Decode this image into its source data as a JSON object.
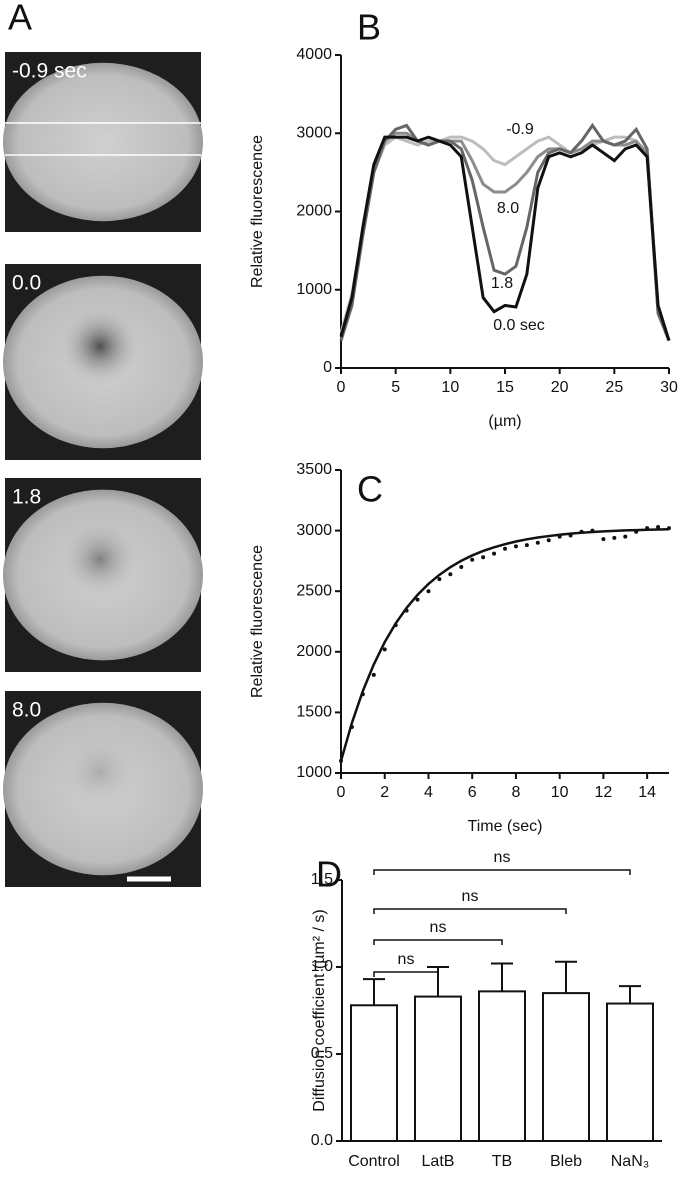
{
  "panel_a": {
    "label": "A",
    "frames": [
      "-0.9 sec",
      "0.0",
      "1.8",
      "8.0"
    ]
  },
  "chart_data": [
    {
      "type": "line",
      "panel": "B",
      "ylabel": "Relative fluorescence",
      "xlabel": "(µm)",
      "x": [
        0,
        1,
        2,
        3,
        4,
        5,
        6,
        7,
        8,
        9,
        10,
        11,
        12,
        13,
        14,
        15,
        16,
        17,
        18,
        19,
        20,
        21,
        22,
        23,
        24,
        25,
        26,
        27,
        28,
        29,
        30
      ],
      "series": [
        {
          "name": "-0.9",
          "color": "#bdbdbd",
          "values": [
            450,
            950,
            1750,
            2500,
            2850,
            2950,
            2900,
            2850,
            2900,
            2900,
            2950,
            2950,
            2900,
            2800,
            2650,
            2600,
            2700,
            2800,
            2900,
            2950,
            2850,
            2750,
            2800,
            2850,
            2900,
            2950,
            2950,
            2900,
            2700,
            700,
            350
          ]
        },
        {
          "name": "8.0",
          "color": "#8c8c8c",
          "values": [
            350,
            850,
            1700,
            2500,
            2900,
            3000,
            3000,
            2900,
            2850,
            2900,
            2900,
            2900,
            2650,
            2350,
            2250,
            2250,
            2350,
            2500,
            2700,
            2800,
            2800,
            2750,
            2800,
            2900,
            2900,
            2850,
            2850,
            2900,
            2750,
            700,
            350
          ]
        },
        {
          "name": "1.8",
          "color": "#666666",
          "values": [
            350,
            800,
            1700,
            2500,
            2900,
            3050,
            3100,
            2900,
            2850,
            2900,
            2900,
            2800,
            2400,
            1800,
            1250,
            1200,
            1300,
            1800,
            2500,
            2750,
            2800,
            2750,
            2900,
            3100,
            2900,
            2850,
            2900,
            3050,
            2800,
            700,
            350
          ]
        },
        {
          "name": "0.0 sec",
          "color": "#111111",
          "values": [
            400,
            900,
            1800,
            2600,
            2950,
            2950,
            2950,
            2900,
            2950,
            2900,
            2850,
            2700,
            1800,
            900,
            720,
            800,
            780,
            1200,
            2300,
            2700,
            2750,
            2700,
            2750,
            2850,
            2750,
            2650,
            2800,
            2850,
            2700,
            800,
            350
          ]
        }
      ],
      "xlim": [
        0,
        30
      ],
      "ylim": [
        0,
        4000
      ],
      "xticks": [
        0,
        5,
        10,
        15,
        20,
        25,
        30
      ],
      "yticks": [
        0,
        1000,
        2000,
        3000,
        4000
      ]
    },
    {
      "type": "scatter",
      "panel": "C",
      "ylabel": "Relative fluorescence",
      "xlabel": "Time (sec)",
      "x": [
        0,
        0.5,
        1,
        1.5,
        2,
        2.5,
        3,
        3.5,
        4,
        4.5,
        5,
        5.5,
        6,
        6.5,
        7,
        7.5,
        8,
        8.5,
        9,
        9.5,
        10,
        10.5,
        11,
        11.5,
        12,
        12.5,
        13,
        13.5,
        14,
        14.5,
        15
      ],
      "series": [
        {
          "color": "#111111",
          "values": [
            1100,
            1380,
            1650,
            1810,
            2020,
            2220,
            2340,
            2430,
            2500,
            2600,
            2640,
            2700,
            2760,
            2780,
            2810,
            2850,
            2870,
            2880,
            2900,
            2920,
            2950,
            2960,
            2990,
            3000,
            2930,
            2940,
            2950,
            2990,
            3020,
            3030,
            3020
          ]
        },
        {
          "color": "#111111",
          "line": true,
          "values": [
            1100,
            1414,
            1677,
            1896,
            2080,
            2234,
            2362,
            2470,
            2560,
            2635,
            2698,
            2751,
            2795,
            2832,
            2862,
            2888,
            2910,
            2928,
            2943,
            2955,
            2966,
            2975,
            2982,
            2988,
            2994,
            2998,
            3002,
            3004,
            3007,
            3009,
            3011
          ]
        }
      ],
      "xlim": [
        0,
        15
      ],
      "ylim": [
        1000,
        3500
      ],
      "xticks": [
        0,
        2,
        4,
        6,
        8,
        10,
        12,
        14
      ],
      "yticks": [
        1000,
        1500,
        2000,
        2500,
        3000,
        3500
      ]
    },
    {
      "type": "bar",
      "panel": "D",
      "ylabel": "Diffusion coefficient (µm² / s)",
      "categories": [
        "Control",
        "LatB",
        "TB",
        "Bleb",
        "NaN₃"
      ],
      "values": [
        0.78,
        0.83,
        0.86,
        0.85,
        0.79
      ],
      "errors": [
        0.15,
        0.17,
        0.16,
        0.18,
        0.1
      ],
      "color": "#ffffff",
      "annotations": [
        "ns",
        "ns",
        "ns",
        "ns"
      ],
      "ylim": [
        0,
        1.5
      ],
      "yticks": [
        {
          "value": 0,
          "label": "0.0"
        },
        0.5,
        {
          "value": 1,
          "label": "1.0"
        },
        1.5
      ]
    }
  ]
}
